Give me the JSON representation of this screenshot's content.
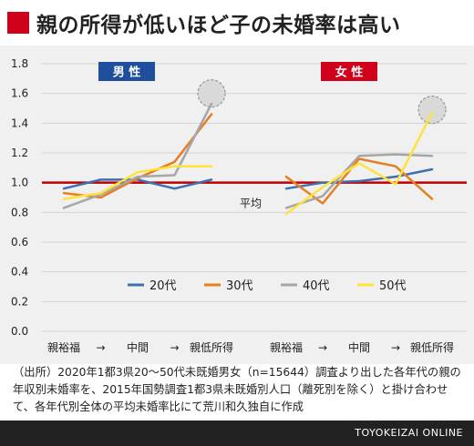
{
  "title": "親の所得が低いほど子の未婚率は高い",
  "source_note": "（出所）2020年1都3県20〜50代未既婚男女（n=15644）調査より出した各年代の親の年収別未婚率を、2015年国勢調査1都3県未既婚別人口（離死別を除く）と掛け合わせて、各年代別全体の平均未婚率比にて荒川和久独自に作成",
  "footer_brand": "TOYOKEIZAI ONLINE",
  "colors": {
    "title_mark": "#d0021b",
    "reference_line": "#c00000",
    "badge_male": "#1f4e9c",
    "badge_female": "#d0021b",
    "20代": "#3d6fb1",
    "30代": "#e67e22",
    "40代": "#a6a6a6",
    "50代": "#ffe23a"
  },
  "chart_data": {
    "type": "line",
    "ylim": [
      0,
      1.8
    ],
    "yticks": [
      "0.0",
      "0.2",
      "0.4",
      "0.6",
      "0.8",
      "1.0",
      "1.2",
      "1.4",
      "1.6",
      "1.8"
    ],
    "x_axis_labels": [
      "親裕福",
      "→",
      "中間",
      "→",
      "親低所得",
      "親裕福",
      "→",
      "中間",
      "→",
      "親低所得"
    ],
    "grid": true,
    "legend_position": "bottom-center",
    "reference_line": {
      "value": 1.0,
      "label": "平均"
    },
    "series_names": [
      "20代",
      "30代",
      "40代",
      "50代"
    ],
    "panels": [
      {
        "badge": "男 性",
        "series": [
          {
            "name": "20代",
            "values": [
              0.96,
              1.02,
              1.02,
              0.96,
              1.02
            ]
          },
          {
            "name": "30代",
            "values": [
              0.93,
              0.9,
              1.03,
              1.14,
              1.46
            ]
          },
          {
            "name": "40代",
            "values": [
              0.83,
              0.92,
              1.04,
              1.05,
              1.53
            ]
          },
          {
            "name": "50代",
            "values": [
              0.89,
              0.93,
              1.07,
              1.11,
              1.11
            ]
          }
        ],
        "highlight_index": 4,
        "highlight_value": 1.6
      },
      {
        "badge": "女 性",
        "series": [
          {
            "name": "20代",
            "values": [
              0.96,
              1.0,
              1.01,
              1.04,
              1.09
            ]
          },
          {
            "name": "30代",
            "values": [
              1.04,
              0.86,
              1.16,
              1.11,
              0.89
            ]
          },
          {
            "name": "40代",
            "values": [
              0.83,
              0.91,
              1.18,
              1.19,
              1.18
            ]
          },
          {
            "name": "50代",
            "values": [
              0.79,
              0.97,
              1.13,
              0.99,
              1.47
            ]
          }
        ],
        "highlight_index": 4,
        "highlight_value": 1.49
      }
    ]
  }
}
